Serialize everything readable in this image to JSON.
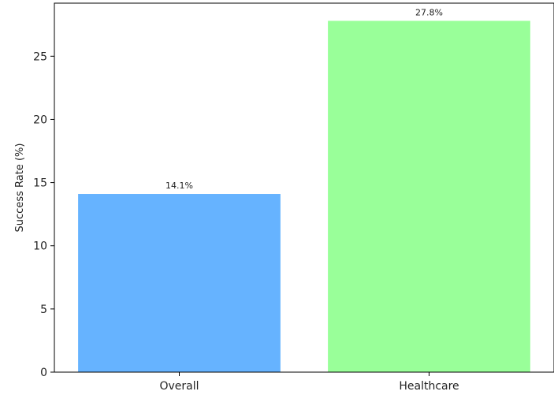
{
  "chart_data": {
    "type": "bar",
    "title": "",
    "xlabel": "",
    "ylabel": "Success Rate (%)",
    "categories": [
      "Overall",
      "Healthcare"
    ],
    "values": [
      14.1,
      27.8
    ],
    "value_labels": [
      "14.1%",
      "27.8%"
    ],
    "colors": [
      "#66b3ff",
      "#99ff99"
    ],
    "ylim": [
      0,
      29.2
    ],
    "yticks": [
      0,
      5,
      10,
      15,
      20,
      25
    ],
    "ytick_labels": [
      "0",
      "5",
      "10",
      "15",
      "20",
      "25"
    ],
    "grid": false,
    "legend": false
  }
}
